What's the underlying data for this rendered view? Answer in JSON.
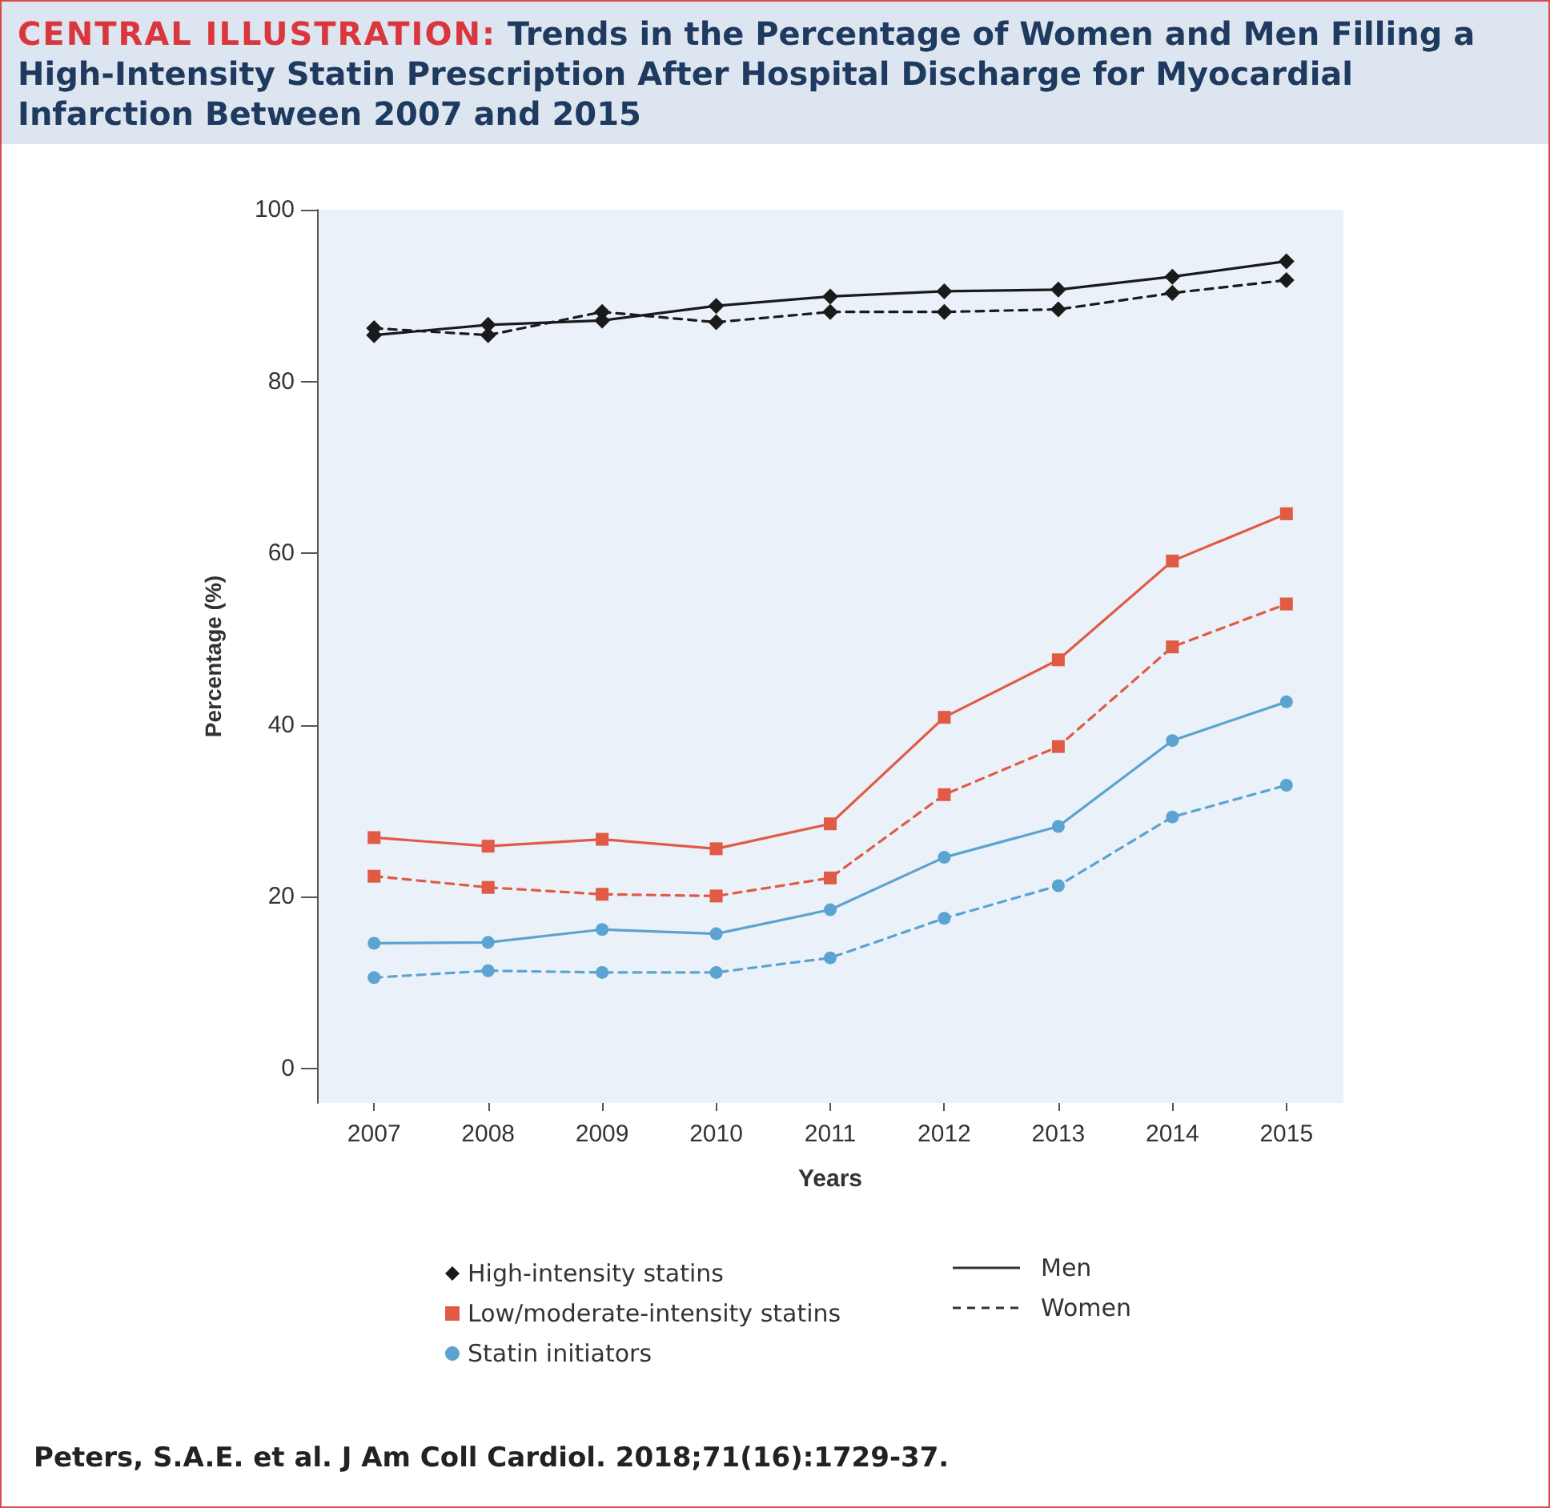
{
  "chart_data": {
    "type": "line",
    "title": "CENTRAL ILLUSTRATION: Trends in the Percentage of Women and Men Filling a High-Intensity Statin Prescription After Hospital Discharge for Myocardial Infarction Between 2007 and 2015",
    "xlabel": "Years",
    "ylabel": "Percentage (%)",
    "categories": [
      "2007",
      "2008",
      "2009",
      "2010",
      "2011",
      "2012",
      "2013",
      "2014",
      "2015"
    ],
    "ylim": [
      -4,
      100
    ],
    "yticks": [
      0,
      20,
      40,
      60,
      80,
      100
    ],
    "grid": false,
    "legend": "bottom",
    "series": [
      {
        "name": "High-intensity statins",
        "color": "#1a1a1a",
        "marker": "diamond",
        "line_style": "solid",
        "values": [
          85.4,
          86.6,
          87.1,
          88.8,
          89.9,
          90.5,
          90.7,
          92.2,
          94.0
        ]
      },
      {
        "color": "#1a1a1a",
        "marker": "diamond",
        "line_style": "dashed",
        "values": [
          86.2,
          85.4,
          88.1,
          86.9,
          88.1,
          88.1,
          88.4,
          90.3,
          91.8
        ]
      },
      {
        "name": "Low/moderate-intensity statins",
        "color": "#e05a45",
        "marker": "square",
        "line_style": "solid",
        "values": [
          26.9,
          25.9,
          26.7,
          25.6,
          28.5,
          40.9,
          47.6,
          59.1,
          64.6
        ]
      },
      {
        "color": "#e05a45",
        "marker": "square",
        "line_style": "dashed",
        "values": [
          22.4,
          21.1,
          20.3,
          20.1,
          22.2,
          31.9,
          37.5,
          49.1,
          54.1
        ]
      },
      {
        "name": "Statin initiators",
        "color": "#5ba3d0",
        "marker": "circle",
        "line_style": "solid",
        "values": [
          14.6,
          14.7,
          16.2,
          15.7,
          18.5,
          24.6,
          28.2,
          38.2,
          42.7
        ]
      },
      {
        "color": "#5ba3d0",
        "marker": "circle",
        "line_style": "dashed",
        "values": [
          10.6,
          11.4,
          11.2,
          11.2,
          12.9,
          17.5,
          21.3,
          29.3,
          33.0
        ]
      }
    ],
    "annotations": [
      "Men",
      "Women",
      "Peters, S.A.E. et al. J Am Coll Cardiol. 2018;71(16):1729-37."
    ]
  }
}
